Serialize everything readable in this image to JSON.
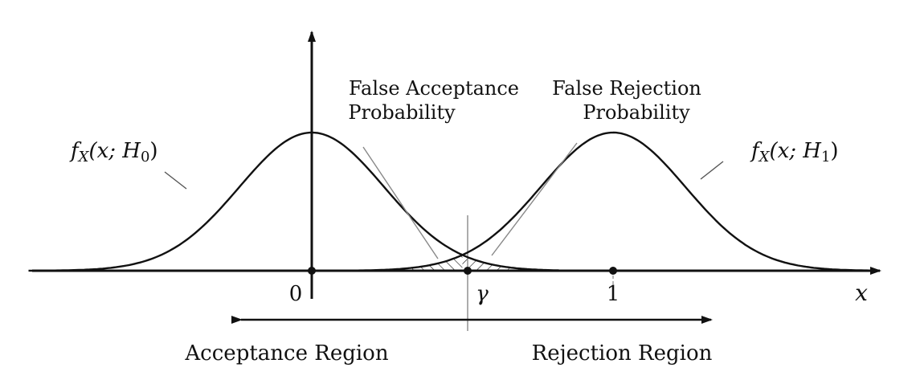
{
  "labels": {
    "false_acceptance_line1": "False Acceptance",
    "false_acceptance_line2": "Probability",
    "false_rejection_line1": "False Rejection",
    "false_rejection_line2": "Probability",
    "h0_func": "f",
    "h0_sub": "X",
    "h0_args": "(x; H",
    "h0_idx": "0",
    "h0_close": ")",
    "h1_func": "f",
    "h1_sub": "X",
    "h1_args": "(x; H",
    "h1_idx": "1",
    "h1_close": ")",
    "tick_zero": "0",
    "tick_gamma": "γ",
    "tick_one": "1",
    "axis_x": "x",
    "acceptance_region": "Acceptance Region",
    "rejection_region": "Rejection Region"
  },
  "chart_data": {
    "type": "line",
    "x_ticks": [
      "0",
      "γ",
      "1"
    ],
    "x_tick_values": [
      0,
      0.5,
      1
    ],
    "threshold": 0.5,
    "series": [
      {
        "mean": 0,
        "sd": 0.24
      },
      {
        "mean": 1,
        "sd": 0.24
      }
    ],
    "xlim": [
      -0.94,
      1.85
    ],
    "shaded": [
      "x > γ under H0 (false acceptance)",
      "x < γ under H1 (false rejection)"
    ]
  },
  "colors": {
    "ink": "#111111",
    "guide": "#888888",
    "background": "#ffffff"
  }
}
